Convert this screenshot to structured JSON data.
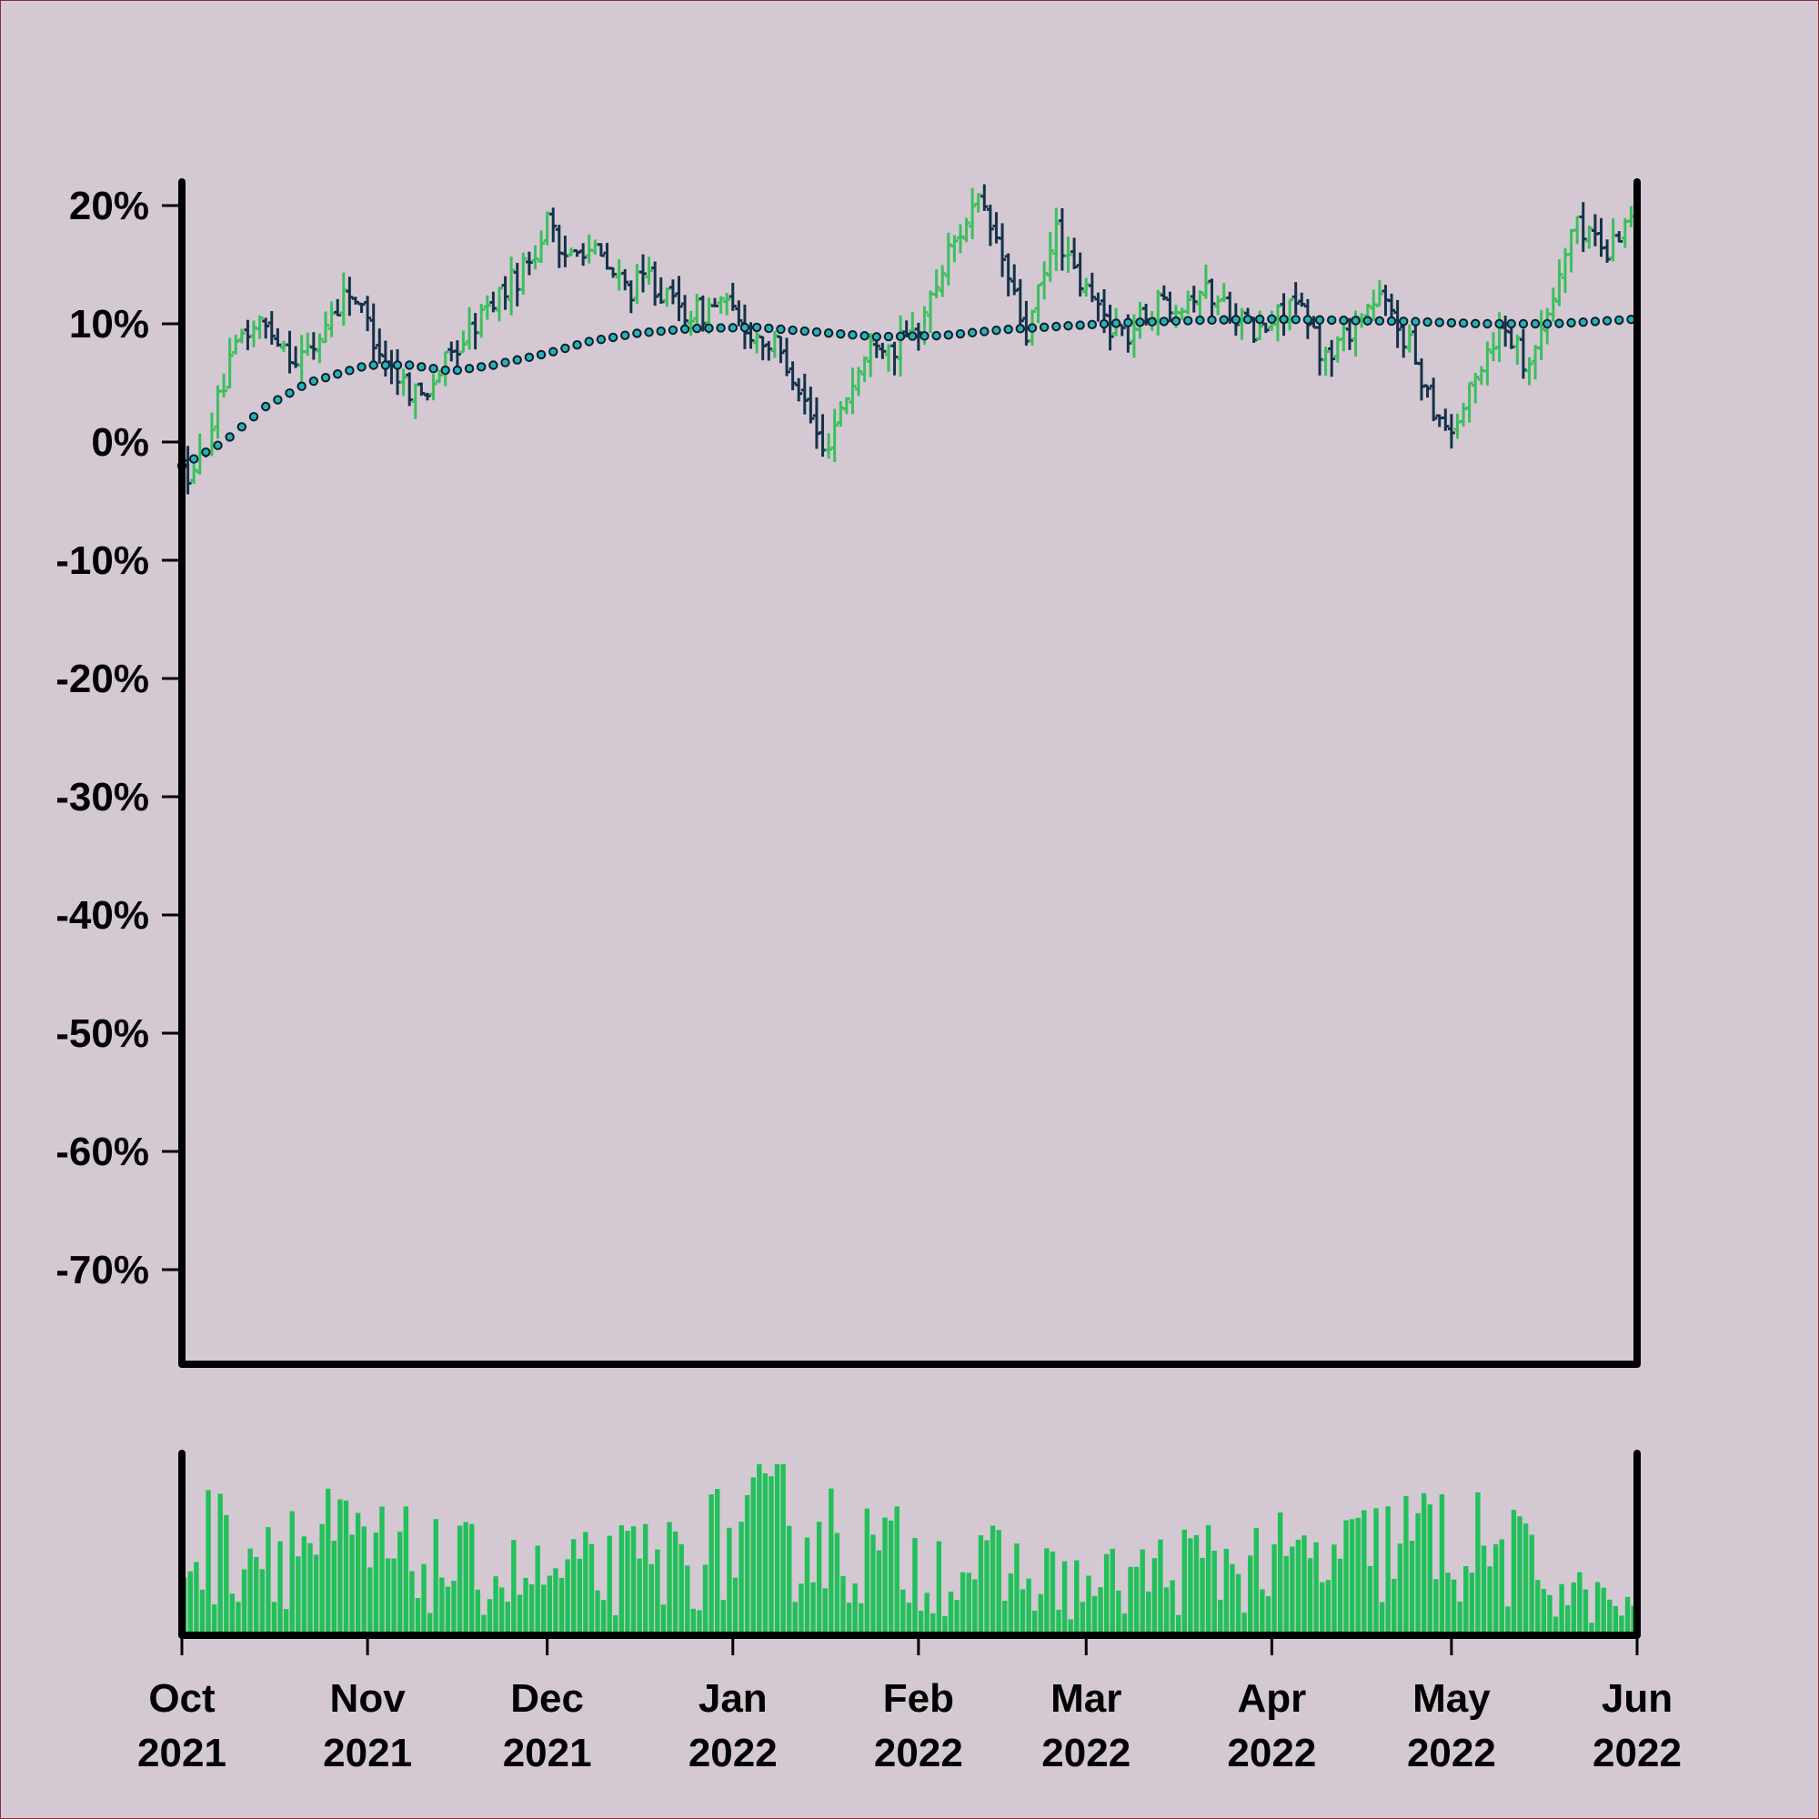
{
  "colors": {
    "background": "#d4c9d2",
    "up": "#3cbf5e",
    "down": "#14324a",
    "volume": "#22c05a",
    "ma_fill": "#2ab0b8",
    "ma_stroke": "#0a1e2a",
    "axis": "#000000"
  },
  "chart_data": {
    "type": "ohlc",
    "price_axis": {
      "format": "percent",
      "ylim": [
        -78,
        22
      ],
      "ticks": [
        20,
        10,
        0,
        -10,
        -20,
        -30,
        -40,
        -50,
        -60,
        -70
      ],
      "tick_labels": [
        "20%",
        "10%",
        "0%",
        "-10%",
        "-20%",
        "-30%",
        "-40%",
        "-50%",
        "-60%",
        "-70%"
      ]
    },
    "x_axis": {
      "range": [
        "2021-10-01",
        "2022-06-01"
      ],
      "ticks": [
        "2021-10-01",
        "2021-11-01",
        "2021-12-01",
        "2022-01-01",
        "2022-02-01",
        "2022-03-01",
        "2022-04-01",
        "2022-05-01",
        "2022-06-01"
      ],
      "tick_months": [
        "Oct",
        "Nov",
        "Dec",
        "Jan",
        "Feb",
        "Mar",
        "Apr",
        "May",
        "Jun"
      ],
      "tick_years": [
        "2021",
        "2021",
        "2021",
        "2022",
        "2022",
        "2022",
        "2022",
        "2022",
        "2022"
      ]
    },
    "price_path": [
      [
        "2021-10-01",
        -2
      ],
      [
        "2021-10-03",
        -3
      ],
      [
        "2021-10-05",
        0
      ],
      [
        "2021-10-08",
        5
      ],
      [
        "2021-10-11",
        9
      ],
      [
        "2021-10-14",
        10
      ],
      [
        "2021-10-17",
        9
      ],
      [
        "2021-10-20",
        7
      ],
      [
        "2021-10-23",
        8
      ],
      [
        "2021-10-26",
        11
      ],
      [
        "2021-10-29",
        13
      ],
      [
        "2021-11-01",
        10
      ],
      [
        "2021-11-04",
        7
      ],
      [
        "2021-11-07",
        5
      ],
      [
        "2021-11-10",
        4
      ],
      [
        "2021-11-13",
        6
      ],
      [
        "2021-11-16",
        8
      ],
      [
        "2021-11-19",
        10
      ],
      [
        "2021-11-22",
        12
      ],
      [
        "2021-11-26",
        14
      ],
      [
        "2021-11-30",
        17
      ],
      [
        "2021-12-01",
        20
      ],
      [
        "2021-12-03",
        15
      ],
      [
        "2021-12-06",
        17
      ],
      [
        "2021-12-09",
        16
      ],
      [
        "2021-12-12",
        14
      ],
      [
        "2021-12-15",
        13
      ],
      [
        "2021-12-18",
        14
      ],
      [
        "2021-12-21",
        12
      ],
      [
        "2021-12-24",
        11
      ],
      [
        "2021-12-27",
        11
      ],
      [
        "2021-12-30",
        12
      ],
      [
        "2022-01-02",
        10
      ],
      [
        "2022-01-05",
        9
      ],
      [
        "2022-01-08",
        8
      ],
      [
        "2022-01-11",
        6
      ],
      [
        "2022-01-14",
        2
      ],
      [
        "2022-01-16",
        -1
      ],
      [
        "2022-01-19",
        3
      ],
      [
        "2022-01-22",
        6
      ],
      [
        "2022-01-25",
        9
      ],
      [
        "2022-01-28",
        8
      ],
      [
        "2022-01-31",
        9
      ],
      [
        "2022-02-03",
        12
      ],
      [
        "2022-02-06",
        16
      ],
      [
        "2022-02-09",
        19
      ],
      [
        "2022-02-11",
        20
      ],
      [
        "2022-02-14",
        17
      ],
      [
        "2022-02-17",
        12
      ],
      [
        "2022-02-19",
        9
      ],
      [
        "2022-02-22",
        14
      ],
      [
        "2022-02-24",
        18
      ],
      [
        "2022-02-27",
        14
      ],
      [
        "2022-03-02",
        12
      ],
      [
        "2022-03-05",
        10
      ],
      [
        "2022-03-08",
        9
      ],
      [
        "2022-03-11",
        11
      ],
      [
        "2022-03-14",
        12
      ],
      [
        "2022-03-17",
        12
      ],
      [
        "2022-03-20",
        13
      ],
      [
        "2022-03-23",
        12
      ],
      [
        "2022-03-26",
        11
      ],
      [
        "2022-03-29",
        9
      ],
      [
        "2022-04-01",
        10
      ],
      [
        "2022-04-04",
        12
      ],
      [
        "2022-04-07",
        10
      ],
      [
        "2022-04-10",
        7
      ],
      [
        "2022-04-13",
        9
      ],
      [
        "2022-04-16",
        11
      ],
      [
        "2022-04-19",
        12
      ],
      [
        "2022-04-22",
        10
      ],
      [
        "2022-04-25",
        7
      ],
      [
        "2022-04-28",
        3
      ],
      [
        "2022-05-01",
        1
      ],
      [
        "2022-05-04",
        4
      ],
      [
        "2022-05-07",
        8
      ],
      [
        "2022-05-10",
        10
      ],
      [
        "2022-05-13",
        7
      ],
      [
        "2022-05-16",
        9
      ],
      [
        "2022-05-19",
        14
      ],
      [
        "2022-05-21",
        18
      ],
      [
        "2022-05-24",
        18
      ],
      [
        "2022-05-27",
        16
      ],
      [
        "2022-05-30",
        19
      ],
      [
        "2022-06-01",
        20
      ]
    ],
    "moving_average": [
      [
        "2021-10-01",
        -2
      ],
      [
        "2021-10-08",
        0
      ],
      [
        "2021-10-15",
        3
      ],
      [
        "2021-10-22",
        5
      ],
      [
        "2021-11-01",
        6.5
      ],
      [
        "2021-11-08",
        6.5
      ],
      [
        "2021-11-15",
        6
      ],
      [
        "2021-11-22",
        6.5
      ],
      [
        "2021-12-01",
        7.5
      ],
      [
        "2021-12-08",
        8.5
      ],
      [
        "2021-12-16",
        9.2
      ],
      [
        "2021-12-25",
        9.6
      ],
      [
        "2022-01-05",
        9.7
      ],
      [
        "2022-01-15",
        9.3
      ],
      [
        "2022-01-25",
        8.9
      ],
      [
        "2022-02-05",
        9.0
      ],
      [
        "2022-02-15",
        9.5
      ],
      [
        "2022-02-25",
        9.8
      ],
      [
        "2022-03-08",
        10.1
      ],
      [
        "2022-03-20",
        10.3
      ],
      [
        "2022-04-01",
        10.4
      ],
      [
        "2022-04-12",
        10.3
      ],
      [
        "2022-04-24",
        10.2
      ],
      [
        "2022-05-06",
        10.0
      ],
      [
        "2022-05-18",
        10.0
      ],
      [
        "2022-06-01",
        10.4
      ]
    ],
    "volume_profile": [
      [
        "2021-10-01",
        0.55
      ],
      [
        "2021-10-20",
        0.6
      ],
      [
        "2021-11-10",
        0.45
      ],
      [
        "2021-12-01",
        0.35
      ],
      [
        "2021-12-20",
        0.45
      ],
      [
        "2022-01-10",
        0.7
      ],
      [
        "2022-01-20",
        0.55
      ],
      [
        "2022-02-01",
        0.45
      ],
      [
        "2022-02-15",
        0.4
      ],
      [
        "2022-03-01",
        0.3
      ],
      [
        "2022-03-20",
        0.45
      ],
      [
        "2022-04-10",
        0.45
      ],
      [
        "2022-04-25",
        0.6
      ],
      [
        "2022-05-10",
        0.5
      ],
      [
        "2022-05-22",
        0.25
      ],
      [
        "2022-06-01",
        0.15
      ]
    ]
  }
}
